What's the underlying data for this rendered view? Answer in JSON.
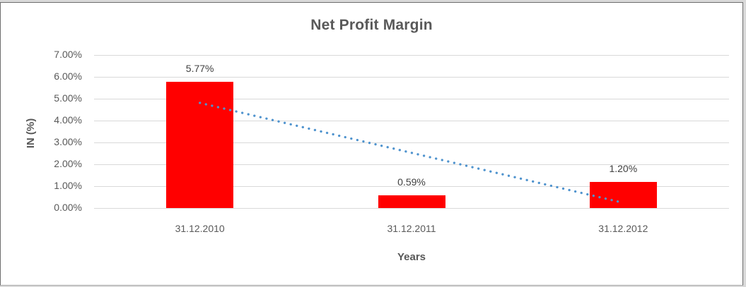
{
  "chart_data": {
    "type": "bar",
    "title": "Net Profit Margin",
    "xlabel": "Years",
    "ylabel": "IN (%)",
    "categories": [
      "31.12.2010",
      "31.12.2011",
      "31.12.2012"
    ],
    "series": [
      {
        "name": "Net Profit Margin",
        "color": "#ff0000",
        "values": [
          5.77,
          0.59,
          1.2
        ],
        "value_labels": [
          "5.77%",
          "0.59%",
          "1.20%"
        ]
      }
    ],
    "ylim": [
      0,
      7
    ],
    "yticks": [
      {
        "value": 7,
        "label": "7.00%"
      },
      {
        "value": 6,
        "label": "6.00%"
      },
      {
        "value": 5,
        "label": "5.00%"
      },
      {
        "value": 4,
        "label": "4.00%"
      },
      {
        "value": 3,
        "label": "3.00%"
      },
      {
        "value": 2,
        "label": "2.00%"
      },
      {
        "value": 1,
        "label": "1.00%"
      },
      {
        "value": 0,
        "label": "0.00%"
      }
    ],
    "grid": "horizontal",
    "legend": "none",
    "trendline": {
      "type": "linear",
      "style": "dotted",
      "color": "#4f93ce",
      "start_value": 4.81,
      "end_value": 0.24
    },
    "colors": {
      "bar": "#ff0000",
      "gridline": "#d9d9d9",
      "title_text": "#595959",
      "axis_text": "#595959",
      "data_label_text": "#404040",
      "trendline": "#4f93ce"
    }
  }
}
